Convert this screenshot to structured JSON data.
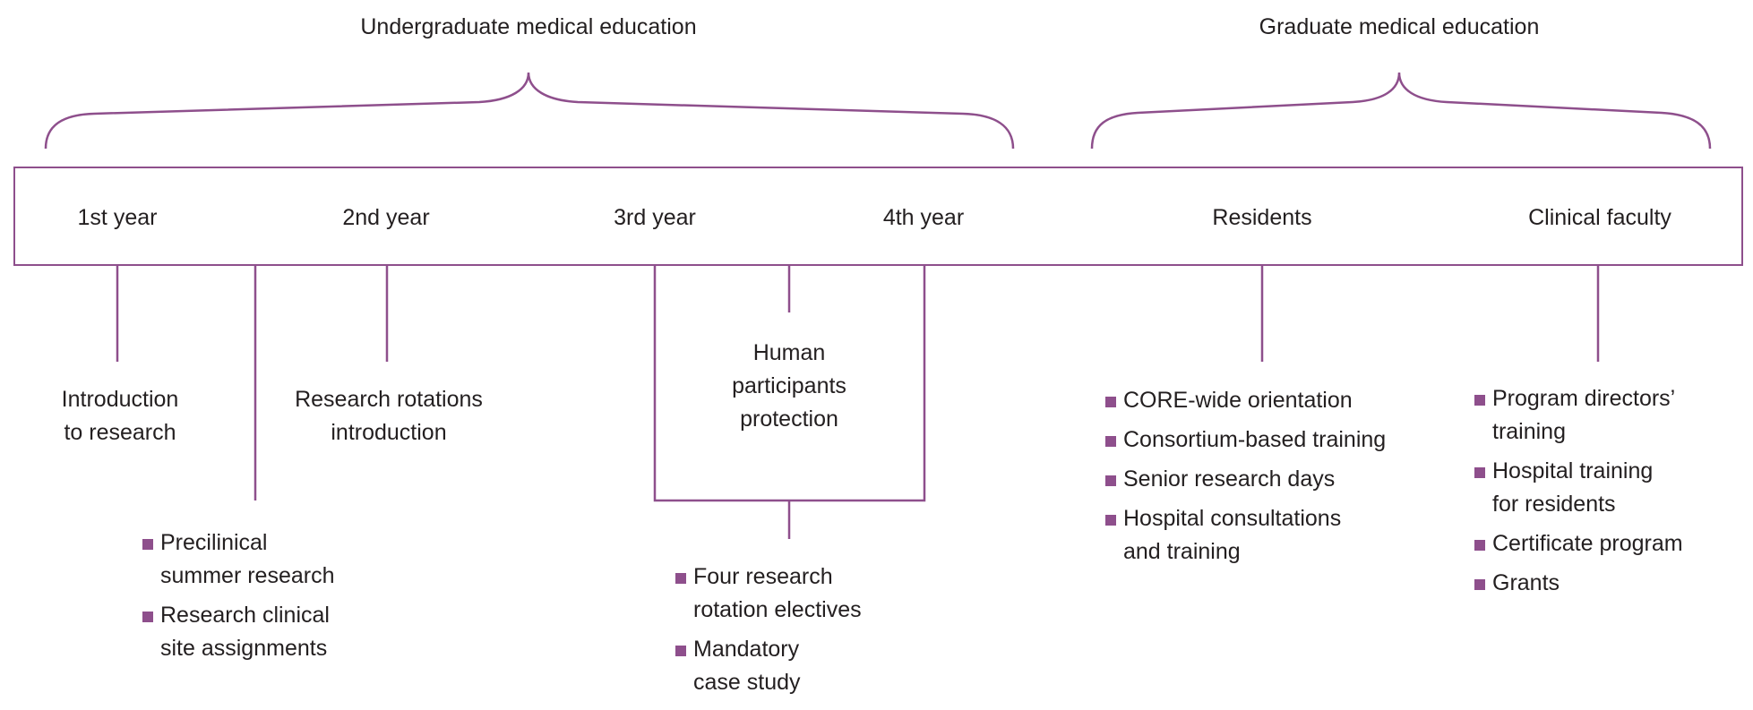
{
  "colors": {
    "accent": "#8e4f8c",
    "text": "#231f20"
  },
  "groups": {
    "undergraduate": "Undergraduate medical education",
    "graduate": "Graduate medical education"
  },
  "stages": [
    "1st year",
    "2nd year",
    "3rd year",
    "4th year",
    "Residents",
    "Clinical faculty"
  ],
  "nodes": {
    "intro_research": [
      "Introduction",
      "to research"
    ],
    "rotations_intro": [
      "Research rotations",
      "introduction"
    ],
    "human_participants": [
      "Human",
      "participants",
      "protection"
    ]
  },
  "lists": {
    "preclinical": [
      [
        "Precilinical",
        "summer research"
      ],
      [
        "Research clinical",
        "site assignments"
      ]
    ],
    "electives": [
      [
        "Four research",
        "rotation electives"
      ],
      [
        "Mandatory",
        "case study"
      ]
    ],
    "residents": [
      [
        "CORE-wide orientation"
      ],
      [
        "Consortium-based training"
      ],
      [
        "Senior research days"
      ],
      [
        "Hospital consultations",
        "and training"
      ]
    ],
    "faculty": [
      [
        "Program directors’",
        "training"
      ],
      [
        "Hospital training",
        "for residents"
      ],
      [
        "Certificate program"
      ],
      [
        "Grants"
      ]
    ]
  }
}
